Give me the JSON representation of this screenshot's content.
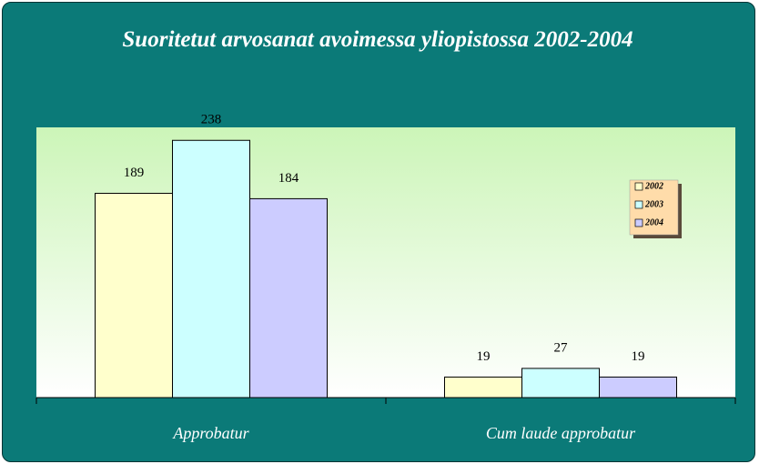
{
  "chart_data": {
    "type": "bar",
    "title": "Suoritetut arvosanat avoimessa yliopistossa 2002-2004",
    "categories": [
      "Approbatur",
      "Cum laude approbatur"
    ],
    "series": [
      {
        "name": "2002",
        "color": "#ffffcc",
        "values": [
          189,
          19
        ]
      },
      {
        "name": "2003",
        "color": "#ccffff",
        "values": [
          238,
          27
        ]
      },
      {
        "name": "2004",
        "color": "#ccccff",
        "values": [
          184,
          19
        ]
      }
    ],
    "ylim": [
      0,
      250
    ],
    "legend": "right"
  }
}
